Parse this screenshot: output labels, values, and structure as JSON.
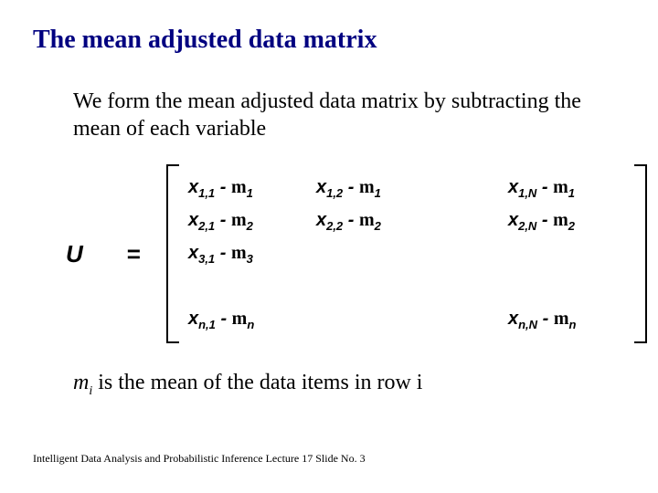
{
  "title": "The mean adjusted data matrix",
  "body": "We form the mean adjusted data matrix by subtracting the mean of each variable",
  "eq": {
    "U": "U",
    "equals": "="
  },
  "matrix": {
    "r1c1_x": "x",
    "r1c1_xs": "1,1",
    "r1c1_m": "m",
    "r1c1_ms": "1",
    "r1c2_x": "x",
    "r1c2_xs": "1,2",
    "r1c2_m": "m",
    "r1c2_ms": "1",
    "r1c4_x": "x",
    "r1c4_xs": "1,N",
    "r1c4_m": "m",
    "r1c4_ms": "1",
    "r2c1_x": "x",
    "r2c1_xs": "2,1",
    "r2c1_m": "m",
    "r2c1_ms": "2",
    "r2c2_x": "x",
    "r2c2_xs": "2,2",
    "r2c2_m": "m",
    "r2c2_ms": "2",
    "r2c4_x": "x",
    "r2c4_xs": "2,N",
    "r2c4_m": "m",
    "r2c4_ms": "2",
    "r3c1_x": "x",
    "r3c1_xs": "3,1",
    "r3c1_m": "m",
    "r3c1_ms": "3",
    "r5c1_x": "x",
    "r5c1_xs": "n,1",
    "r5c1_m": "m",
    "r5c1_ms": "n",
    "r5c4_x": "x",
    "r5c4_xs": "n,N",
    "r5c4_m": "m",
    "r5c4_ms": "n",
    "minus": " - "
  },
  "note_mu": "m",
  "note_sub": "i",
  "note_text": " is the mean of the data items in row i",
  "footer": "Intelligent Data Analysis and Probabilistic Inference Lecture 17  Slide No. 3"
}
